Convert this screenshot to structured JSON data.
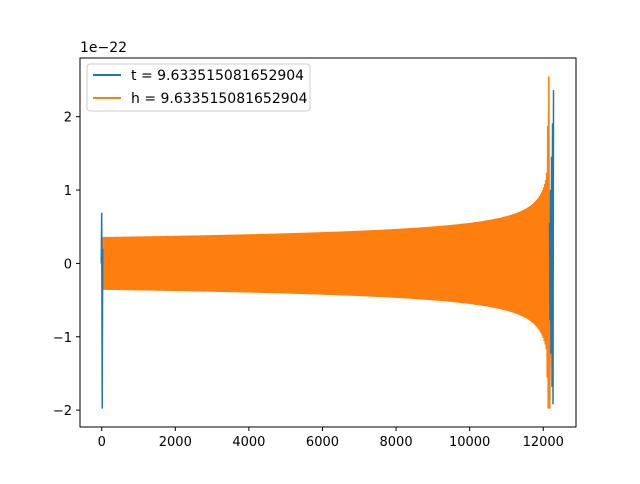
{
  "chart_data": {
    "type": "line",
    "title": "",
    "xlabel": "",
    "ylabel": "",
    "y_offset_label": "1e−22",
    "xlim": [
      -590,
      12890
    ],
    "ylim": [
      -2.23,
      2.8
    ],
    "x_ticks": [
      0,
      2000,
      4000,
      6000,
      8000,
      10000,
      12000
    ],
    "x_tick_labels": [
      "0",
      "2000",
      "4000",
      "6000",
      "8000",
      "10000",
      "12000"
    ],
    "y_ticks": [
      -2,
      -1,
      0,
      1,
      2
    ],
    "y_tick_labels": [
      "−2",
      "−1",
      "0",
      "1",
      "2"
    ],
    "grid": false,
    "legend_position": "top-left",
    "colors": {
      "t": "#1f77b4",
      "h": "#ff7f0e"
    },
    "series": [
      {
        "name": "t = 9.633515081652904",
        "color": "#1f77b4",
        "description_points": {
          "start_spike": {
            "x": 0,
            "min": -1.98,
            "max": 0.69
          },
          "body_amplitude_start": 0.36,
          "body_amplitude_end": 0.55,
          "merger_x": 12270,
          "end_spike": {
            "x": 12290,
            "min": -1.92,
            "max": 2.55
          },
          "x_start": 0,
          "x_end": 12300
        }
      },
      {
        "name": "h = 9.633515081652904",
        "color": "#ff7f0e",
        "description_points": {
          "x_start": 0,
          "x_end": 12300,
          "body_amplitude_start": 0.36,
          "body_amplitude_at_8000": 0.45,
          "body_amplitude_at_11000": 0.6,
          "peak_x": 12150,
          "peak_max": 2.55,
          "peak_min": -1.98,
          "ringdown_end_x": 12200
        }
      }
    ]
  }
}
